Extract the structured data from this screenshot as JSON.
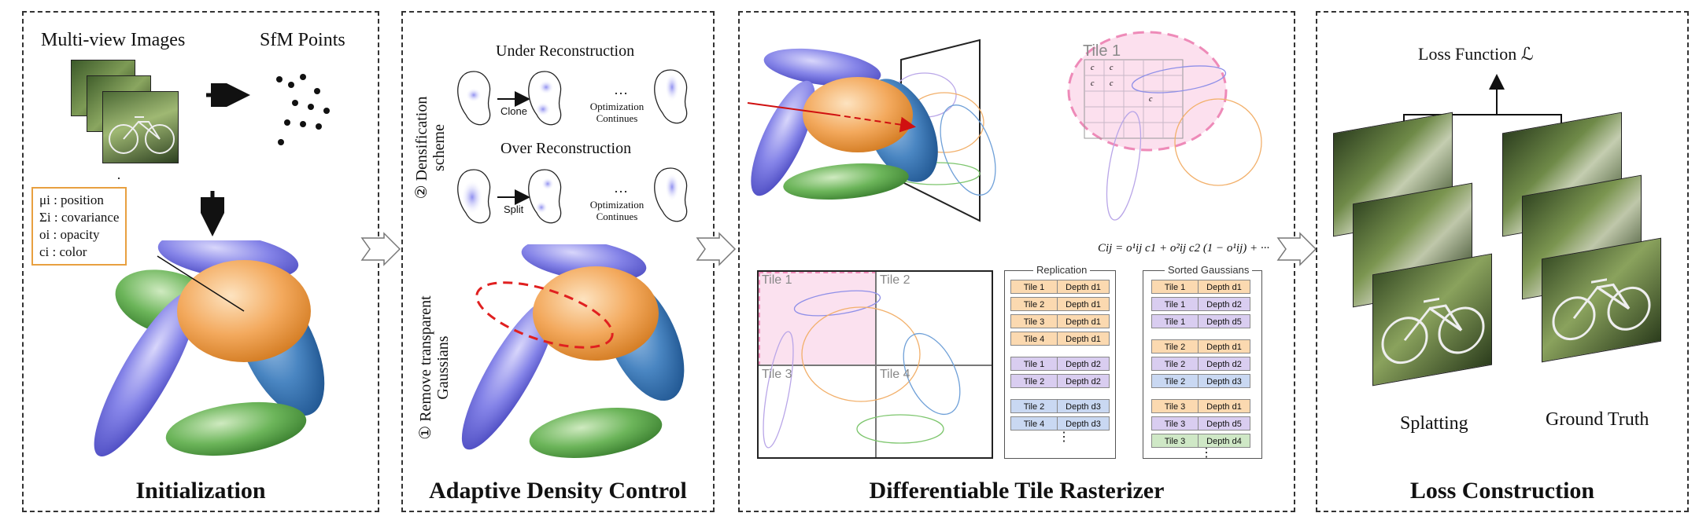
{
  "panels": {
    "initialization": {
      "title": "Initialization",
      "multiview_label": "Multi-view Images",
      "sfm_label": "SfM Points",
      "ellipsis": "·\n·\n·",
      "attributes": [
        "μi : position",
        "Σi : covariance",
        "oi : opacity",
        "ci : color"
      ]
    },
    "adaptive": {
      "title": "Adaptive Density Control",
      "densification_label": "② Densification scheme",
      "remove_label": "① Remove transparent Gaussians",
      "under_label": "Under Reconstruction",
      "over_label": "Over Reconstruction",
      "clone_label": "Clone",
      "split_label": "Split",
      "opt_continues": "Optimization Continues",
      "dots": "…"
    },
    "rasterizer": {
      "title": "Differentiable Tile Rasterizer",
      "tile1": "Tile 1",
      "tile2": "Tile 2",
      "tile3": "Tile 3",
      "tile4": "Tile 4",
      "formula": "Cij = o¹ij c1 + o²ij c2 (1 − o¹ij) + ···",
      "replication_title": "Replication",
      "sorted_title": "Sorted Gaussians",
      "replication_rows": [
        {
          "tile": "Tile 1",
          "depth": "Depth d1",
          "color": "orange"
        },
        {
          "tile": "Tile 2",
          "depth": "Depth d1",
          "color": "orange"
        },
        {
          "tile": "Tile 3",
          "depth": "Depth d1",
          "color": "orange"
        },
        {
          "tile": "Tile 4",
          "depth": "Depth d1",
          "color": "orange"
        },
        {
          "tile": "Tile 1",
          "depth": "Depth d2",
          "color": "purple"
        },
        {
          "tile": "Tile 2",
          "depth": "Depth d2",
          "color": "purple"
        },
        {
          "tile": "Tile 2",
          "depth": "Depth d3",
          "color": "blue"
        },
        {
          "tile": "Tile 4",
          "depth": "Depth d3",
          "color": "blue"
        }
      ],
      "sorted_rows": [
        {
          "tile": "Tile 1",
          "depth": "Depth d1",
          "color": "orange"
        },
        {
          "tile": "Tile 1",
          "depth": "Depth d2",
          "color": "purple"
        },
        {
          "tile": "Tile 1",
          "depth": "Depth d5",
          "color": "purple"
        },
        {
          "tile": "Tile 2",
          "depth": "Depth d1",
          "color": "orange"
        },
        {
          "tile": "Tile 2",
          "depth": "Depth d2",
          "color": "purple"
        },
        {
          "tile": "Tile 2",
          "depth": "Depth d3",
          "color": "blue"
        },
        {
          "tile": "Tile 3",
          "depth": "Depth d1",
          "color": "orange"
        },
        {
          "tile": "Tile 3",
          "depth": "Depth d5",
          "color": "purple"
        },
        {
          "tile": "Tile 3",
          "depth": "Depth d4",
          "color": "green"
        }
      ],
      "vdots": "⋮",
      "matrix_labels": [
        "c11",
        "c12",
        "c21",
        "c22",
        "cij"
      ]
    },
    "loss": {
      "title": "Loss Construction",
      "loss_function_label": "Loss Function ℒ",
      "splatting_label": "Splatting",
      "ground_truth_label": "Ground Truth"
    }
  },
  "colors": {
    "orange": "#f0a050",
    "blue": "#3a78b8",
    "purple": "#7a7ae0",
    "green": "#5aa84a",
    "pink": "#f7c8e0",
    "red": "#e02020"
  }
}
